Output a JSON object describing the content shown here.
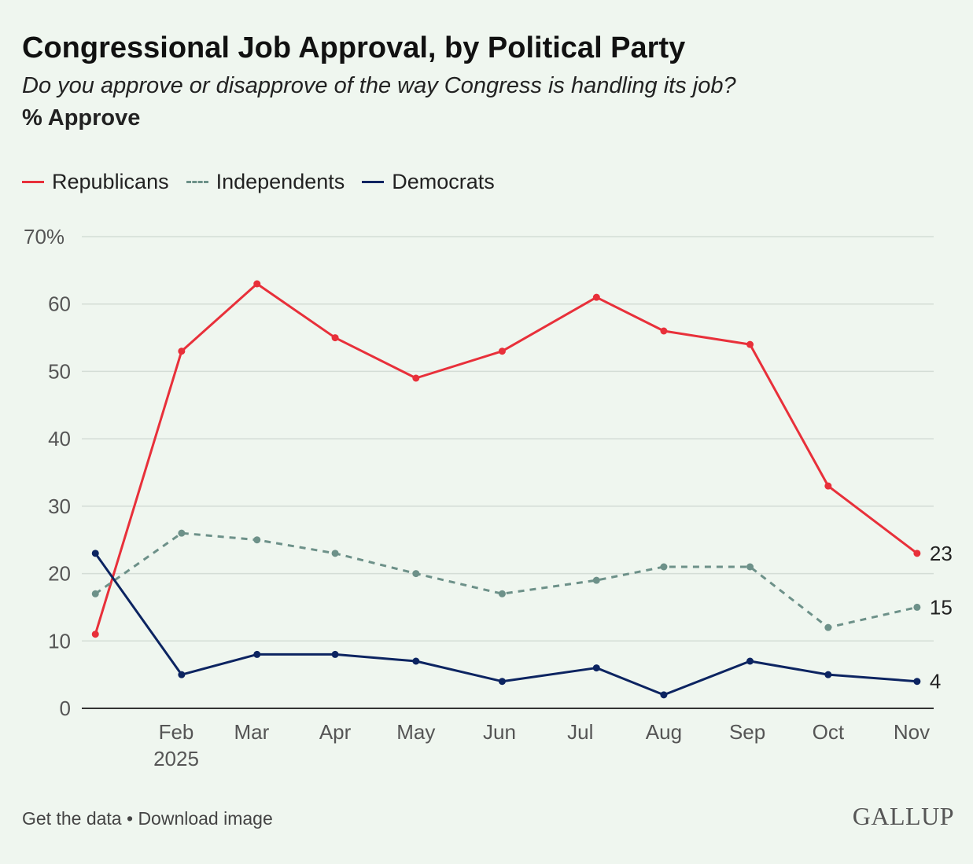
{
  "chart_data": {
    "type": "line",
    "title": "Congressional Job Approval, by Political Party",
    "subtitle": "Do you approve or disapprove of the way Congress is handling its job?",
    "ylabel": "% Approve",
    "ylim": [
      0,
      70
    ],
    "yticks": [
      "0",
      "10",
      "20",
      "30",
      "40",
      "50",
      "60",
      "70%"
    ],
    "ytick_values": [
      0,
      10,
      20,
      30,
      40,
      50,
      60,
      70
    ],
    "xticks": [
      {
        "label": "Feb",
        "sub": "2025",
        "date": "2025-02-01"
      },
      {
        "label": "Mar",
        "date": "2025-03-01"
      },
      {
        "label": "Apr",
        "date": "2025-04-01"
      },
      {
        "label": "May",
        "date": "2025-05-01"
      },
      {
        "label": "Jun",
        "date": "2025-06-01"
      },
      {
        "label": "Jul",
        "date": "2025-07-01"
      },
      {
        "label": "Aug",
        "date": "2025-08-01"
      },
      {
        "label": "Sep",
        "date": "2025-09-01"
      },
      {
        "label": "Oct",
        "date": "2025-10-01"
      },
      {
        "label": "Nov",
        "date": "2025-11-01"
      }
    ],
    "x": [
      "2025-01-02",
      "2025-02-03",
      "2025-03-03",
      "2025-04-01",
      "2025-05-01",
      "2025-06-02",
      "2025-07-07",
      "2025-08-01",
      "2025-09-02",
      "2025-10-01",
      "2025-11-03"
    ],
    "grid": true,
    "legend_placement": "top-left",
    "series": [
      {
        "name": "Republicans",
        "color": "#e8303a",
        "dash": false,
        "values": [
          11,
          53,
          63,
          55,
          49,
          53,
          61,
          56,
          54,
          33,
          23
        ],
        "end_label": "23"
      },
      {
        "name": "Independents",
        "color": "#6d9189",
        "dash": true,
        "values": [
          17,
          26,
          25,
          23,
          20,
          17,
          19,
          21,
          21,
          12,
          15
        ],
        "end_label": "15"
      },
      {
        "name": "Democrats",
        "color": "#0c2461",
        "dash": false,
        "values": [
          23,
          5,
          8,
          8,
          7,
          4,
          6,
          2,
          7,
          5,
          4
        ],
        "end_label": "4"
      }
    ]
  },
  "footer": {
    "get_data": "Get the data",
    "sep": " • ",
    "download": "Download image"
  },
  "logo": "GALLUP"
}
